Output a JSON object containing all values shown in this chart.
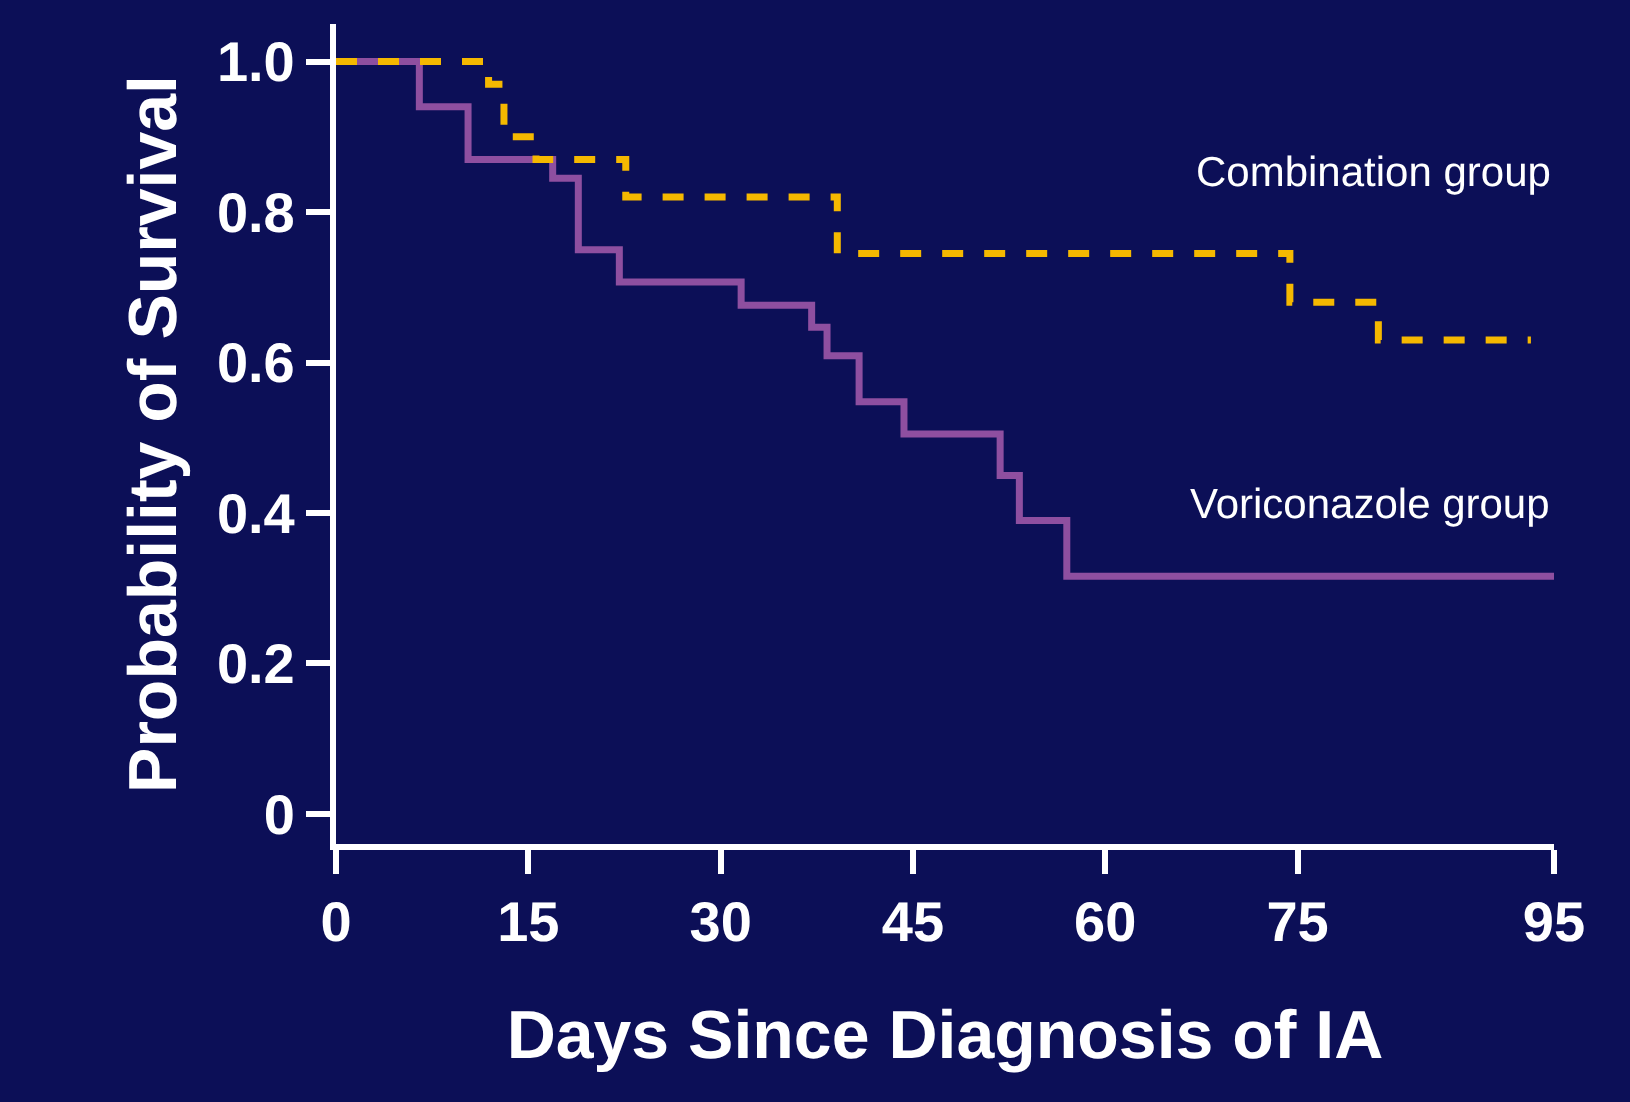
{
  "chart_data": {
    "type": "step",
    "xlabel": "Days Since Diagnosis of IA",
    "ylabel": "Probability of Survival",
    "xlim": [
      0,
      95
    ],
    "ylim": [
      -0.04,
      1.05
    ],
    "xticks": [
      0,
      15,
      30,
      45,
      60,
      75,
      95
    ],
    "yticks": [
      0,
      {
        "value": 0.2,
        "label": "0.2"
      },
      {
        "value": 0.4,
        "label": "0.4"
      },
      {
        "value": 0.6,
        "label": "0.6"
      },
      {
        "value": 0.8,
        "label": "0.8"
      },
      {
        "value": 1,
        "label": "1.0"
      }
    ],
    "grid": false,
    "legend": false,
    "series": [
      {
        "name": "Combination group",
        "color": "#f5b800",
        "line_style": "dashed",
        "x": [
          0,
          11.9,
          13.1,
          15.6,
          22.6,
          39.1,
          74.4,
          81.3,
          93.2
        ],
        "values": [
          1.0,
          0.97,
          0.9,
          0.87,
          0.82,
          0.745,
          0.68,
          0.63,
          0.63
        ]
      },
      {
        "name": "Voriconazole group",
        "color": "#8e4fa0",
        "line_style": "solid",
        "x": [
          0,
          6.5,
          10.3,
          16.9,
          18.9,
          22.1,
          31.6,
          37.1,
          38.3,
          40.8,
          44.3,
          51.8,
          53.3,
          57.0,
          95
        ],
        "values": [
          1.0,
          0.94,
          0.87,
          0.845,
          0.75,
          0.707,
          0.676,
          0.647,
          0.609,
          0.548,
          0.505,
          0.45,
          0.39,
          0.316,
          0.316
        ]
      }
    ]
  }
}
